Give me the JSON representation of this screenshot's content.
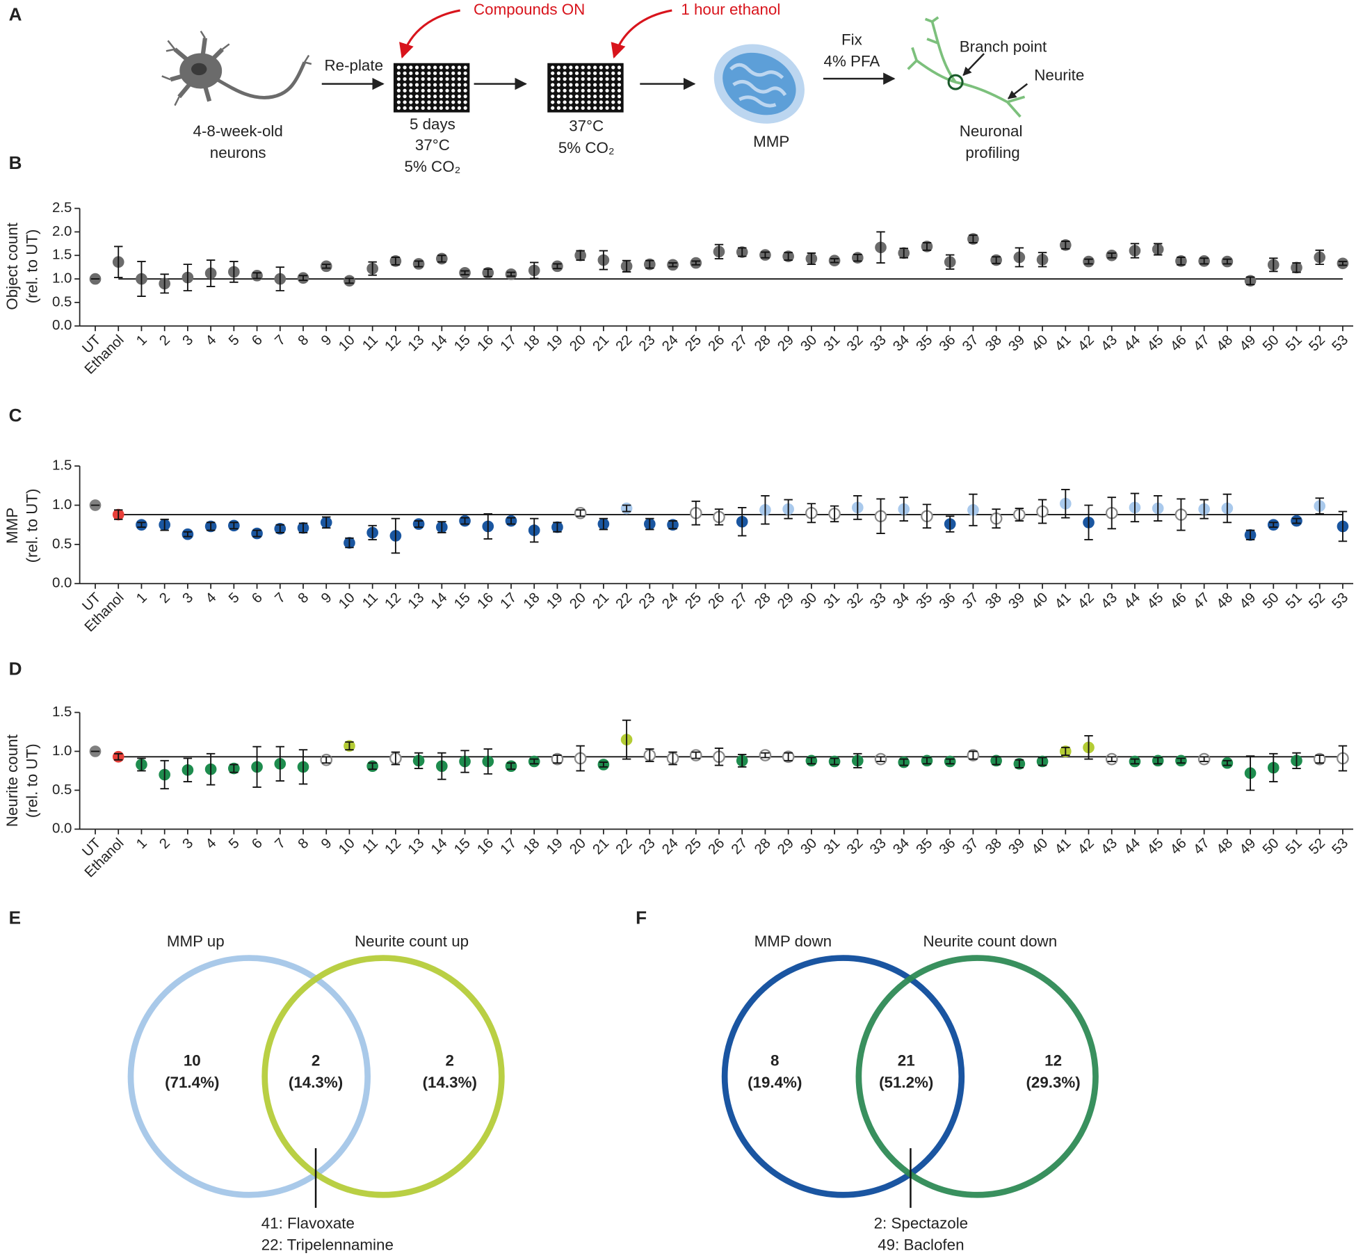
{
  "diagram": {
    "panel": "A",
    "neurons": [
      "4-8-week-old",
      "neurons"
    ],
    "replate": "Re-plate",
    "compounds": "Compounds ON",
    "ethanol": "1 hour ethanol",
    "plate1": [
      "5 days",
      "37°C",
      "5% CO₂"
    ],
    "plate2": [
      "37°C",
      "5% CO₂"
    ],
    "mmp": "MMP",
    "fix": [
      "Fix",
      "4% PFA"
    ],
    "branch": "Branch point",
    "neurite": "Neurite",
    "profiling": [
      "Neuronal",
      "profiling"
    ]
  },
  "chart_data": [
    {
      "type": "errorbar",
      "panel": "B",
      "ylabel": [
        "Object count",
        "(rel. to UT)"
      ],
      "categories": [
        "UT",
        "Ethanol",
        "1",
        "2",
        "3",
        "4",
        "5",
        "6",
        "7",
        "8",
        "9",
        "10",
        "11",
        "12",
        "13",
        "14",
        "15",
        "16",
        "17",
        "18",
        "19",
        "20",
        "21",
        "22",
        "23",
        "24",
        "25",
        "26",
        "27",
        "28",
        "29",
        "30",
        "31",
        "32",
        "33",
        "34",
        "35",
        "36",
        "37",
        "38",
        "39",
        "40",
        "41",
        "42",
        "43",
        "44",
        "45",
        "46",
        "47",
        "48",
        "49",
        "50",
        "51",
        "52",
        "53"
      ],
      "values": [
        1.0,
        1.36,
        1.0,
        0.9,
        1.03,
        1.12,
        1.15,
        1.07,
        1.0,
        1.02,
        1.27,
        0.96,
        1.22,
        1.38,
        1.32,
        1.43,
        1.13,
        1.13,
        1.1,
        1.18,
        1.27,
        1.5,
        1.4,
        1.27,
        1.31,
        1.3,
        1.34,
        1.58,
        1.57,
        1.51,
        1.48,
        1.43,
        1.39,
        1.45,
        1.67,
        1.55,
        1.69,
        1.36,
        1.85,
        1.4,
        1.46,
        1.41,
        1.72,
        1.37,
        1.5,
        1.6,
        1.63,
        1.38,
        1.38,
        1.37,
        0.96,
        1.3,
        1.24,
        1.46,
        1.33
      ],
      "errors": [
        0,
        0.33,
        0.37,
        0.2,
        0.28,
        0.28,
        0.22,
        0.06,
        0.25,
        0.05,
        0.04,
        0.05,
        0.14,
        0.08,
        0.06,
        0.07,
        0.04,
        0.08,
        0.04,
        0.17,
        0.05,
        0.1,
        0.2,
        0.12,
        0.08,
        0.04,
        0.04,
        0.15,
        0.09,
        0.06,
        0.08,
        0.12,
        0.04,
        0.07,
        0.33,
        0.1,
        0.08,
        0.15,
        0.08,
        0.07,
        0.2,
        0.15,
        0.08,
        0.05,
        0.05,
        0.15,
        0.12,
        0.08,
        0.06,
        0.05,
        0.08,
        0.14,
        0.1,
        0.15,
        0.04
      ],
      "color": "#6b6b6b",
      "reference_line": 1.0,
      "ylim": [
        0,
        2.5
      ],
      "yticks": [
        {
          "value": 0,
          "label": "0.0"
        },
        0.5,
        {
          "value": 1,
          "label": "1.0"
        },
        1.5,
        {
          "value": 2,
          "label": "2.0"
        },
        2.5
      ]
    },
    {
      "type": "errorbar",
      "panel": "C",
      "ylabel": [
        "MMP",
        "(rel. to UT)"
      ],
      "categories": [
        "UT",
        "Ethanol",
        "1",
        "2",
        "3",
        "4",
        "5",
        "6",
        "7",
        "8",
        "9",
        "10",
        "11",
        "12",
        "13",
        "14",
        "15",
        "16",
        "17",
        "18",
        "19",
        "20",
        "21",
        "22",
        "23",
        "24",
        "25",
        "26",
        "27",
        "28",
        "29",
        "30",
        "31",
        "32",
        "33",
        "34",
        "35",
        "36",
        "37",
        "38",
        "39",
        "40",
        "41",
        "42",
        "43",
        "44",
        "45",
        "46",
        "47",
        "48",
        "49",
        "50",
        "51",
        "52",
        "53"
      ],
      "values": [
        1.0,
        0.88,
        0.75,
        0.75,
        0.63,
        0.73,
        0.74,
        0.64,
        0.7,
        0.71,
        0.78,
        0.52,
        0.65,
        0.61,
        0.76,
        0.72,
        0.8,
        0.73,
        0.8,
        0.68,
        0.72,
        0.9,
        0.76,
        0.96,
        0.76,
        0.75,
        0.9,
        0.85,
        0.79,
        0.94,
        0.95,
        0.9,
        0.89,
        0.97,
        0.86,
        0.95,
        0.86,
        0.76,
        0.94,
        0.83,
        0.88,
        0.92,
        1.02,
        0.78,
        0.9,
        0.97,
        0.96,
        0.88,
        0.95,
        0.96,
        0.62,
        0.75,
        0.8,
        0.99,
        0.73
      ],
      "errors": [
        0,
        0.06,
        0.03,
        0.07,
        0.03,
        0.05,
        0.04,
        0.04,
        0.05,
        0.06,
        0.07,
        0.06,
        0.09,
        0.22,
        0.04,
        0.07,
        0.04,
        0.16,
        0.04,
        0.15,
        0.06,
        0.04,
        0.07,
        0.04,
        0.07,
        0.05,
        0.15,
        0.1,
        0.18,
        0.18,
        0.12,
        0.12,
        0.1,
        0.15,
        0.22,
        0.15,
        0.15,
        0.1,
        0.2,
        0.12,
        0.08,
        0.15,
        0.18,
        0.22,
        0.2,
        0.18,
        0.16,
        0.2,
        0.12,
        0.18,
        0.06,
        0.03,
        0.03,
        0.1,
        0.19
      ],
      "colors": [
        "#808080",
        "#e8403a",
        "#1a56a0",
        "#1a56a0",
        "#1a56a0",
        "#1a56a0",
        "#1a56a0",
        "#1a56a0",
        "#1a56a0",
        "#1a56a0",
        "#1a56a0",
        "#1a56a0",
        "#1a56a0",
        "#1a56a0",
        "#1a56a0",
        "#1a56a0",
        "#1a56a0",
        "#1a56a0",
        "#1a56a0",
        "#1a56a0",
        "#1a56a0",
        "none",
        "#1a56a0",
        "#a9c9ec",
        "#1a56a0",
        "#1a56a0",
        "none",
        "none",
        "#1a56a0",
        "#a9c9ec",
        "#a9c9ec",
        "none",
        "none",
        "#a9c9ec",
        "none",
        "#a9c9ec",
        "none",
        "#1a56a0",
        "#a9c9ec",
        "none",
        "none",
        "none",
        "#a9c9ec",
        "#1a56a0",
        "none",
        "#a9c9ec",
        "#a9c9ec",
        "none",
        "#a9c9ec",
        "#a9c9ec",
        "#1a56a0",
        "#1a56a0",
        "#1a56a0",
        "#a9c9ec",
        "#1a56a0"
      ],
      "reference_line": 0.88,
      "ylim": [
        0,
        1.5
      ],
      "yticks": [
        {
          "value": 0,
          "label": "0.0"
        },
        0.5,
        {
          "value": 1,
          "label": "1.0"
        },
        1.5
      ]
    },
    {
      "type": "errorbar",
      "panel": "D",
      "ylabel": [
        "Neurite count",
        "(rel. to UT)"
      ],
      "categories": [
        "UT",
        "Ethanol",
        "1",
        "2",
        "3",
        "4",
        "5",
        "6",
        "7",
        "8",
        "9",
        "10",
        "11",
        "12",
        "13",
        "14",
        "15",
        "16",
        "17",
        "18",
        "19",
        "20",
        "21",
        "22",
        "23",
        "24",
        "25",
        "26",
        "27",
        "28",
        "29",
        "30",
        "31",
        "32",
        "33",
        "34",
        "35",
        "36",
        "37",
        "38",
        "39",
        "40",
        "41",
        "42",
        "43",
        "44",
        "45",
        "46",
        "47",
        "48",
        "49",
        "50",
        "51",
        "52",
        "53"
      ],
      "values": [
        1.0,
        0.93,
        0.83,
        0.7,
        0.76,
        0.77,
        0.78,
        0.8,
        0.84,
        0.8,
        0.89,
        1.07,
        0.81,
        0.91,
        0.88,
        0.81,
        0.87,
        0.87,
        0.81,
        0.87,
        0.9,
        0.91,
        0.83,
        1.15,
        0.95,
        0.91,
        0.95,
        0.93,
        0.88,
        0.95,
        0.93,
        0.88,
        0.87,
        0.88,
        0.9,
        0.86,
        0.88,
        0.87,
        0.95,
        0.88,
        0.84,
        0.87,
        1.0,
        1.05,
        0.9,
        0.87,
        0.88,
        0.88,
        0.9,
        0.85,
        0.72,
        0.79,
        0.88,
        0.9,
        0.91
      ],
      "errors": [
        0,
        0.04,
        0.08,
        0.18,
        0.15,
        0.2,
        0.05,
        0.26,
        0.22,
        0.22,
        0.04,
        0.05,
        0.04,
        0.08,
        0.1,
        0.17,
        0.14,
        0.16,
        0.04,
        0.03,
        0.05,
        0.16,
        0.03,
        0.25,
        0.08,
        0.08,
        0.04,
        0.11,
        0.08,
        0.03,
        0.05,
        0.04,
        0.04,
        0.09,
        0.03,
        0.04,
        0.04,
        0.03,
        0.05,
        0.05,
        0.05,
        0.05,
        0.05,
        0.15,
        0.03,
        0.03,
        0.04,
        0.03,
        0.03,
        0.03,
        0.22,
        0.18,
        0.1,
        0.05,
        0.16
      ],
      "colors": [
        "#808080",
        "#e8403a",
        "#1e8c4e",
        "#1e8c4e",
        "#1e8c4e",
        "#1e8c4e",
        "#1e8c4e",
        "#1e8c4e",
        "#1e8c4e",
        "#1e8c4e",
        "none",
        "#b4cc34",
        "#1e8c4e",
        "none",
        "#1e8c4e",
        "#1e8c4e",
        "#1e8c4e",
        "#1e8c4e",
        "#1e8c4e",
        "#1e8c4e",
        "none",
        "none",
        "#1e8c4e",
        "#b4cc34",
        "none",
        "none",
        "none",
        "none",
        "#1e8c4e",
        "none",
        "none",
        "#1e8c4e",
        "#1e8c4e",
        "#1e8c4e",
        "none",
        "#1e8c4e",
        "#1e8c4e",
        "#1e8c4e",
        "none",
        "#1e8c4e",
        "#1e8c4e",
        "#1e8c4e",
        "#b4cc34",
        "#b4cc34",
        "none",
        "#1e8c4e",
        "#1e8c4e",
        "#1e8c4e",
        "none",
        "#1e8c4e",
        "#1e8c4e",
        "#1e8c4e",
        "#1e8c4e",
        "none",
        "none"
      ],
      "reference_line": 0.93,
      "ylim": [
        0,
        1.5
      ],
      "yticks": [
        {
          "value": 0,
          "label": "0.0"
        },
        0.5,
        {
          "value": 1,
          "label": "1.0"
        },
        1.5
      ]
    }
  ],
  "venns": [
    {
      "panel": "E",
      "sets": [
        {
          "name": "MMP up",
          "color": "#a4c6e8"
        },
        {
          "name": "Neurite count up",
          "color": "#b5cc3a"
        }
      ],
      "counts": [
        10,
        2,
        2
      ],
      "percents": [
        71.4,
        14.3,
        14.3
      ],
      "percent_labels": [
        "(71.4%)",
        "(14.3%)",
        "(14.3%)"
      ],
      "note": [
        "41: Flavoxate",
        "22: Tripelennamine"
      ]
    },
    {
      "panel": "F",
      "sets": [
        {
          "name": "MMP down",
          "color": "#0e4c9c"
        },
        {
          "name": "Neurite count down",
          "color": "#2e8a55"
        }
      ],
      "counts": [
        8,
        21,
        12
      ],
      "percents": [
        19.4,
        51.2,
        29.3
      ],
      "percent_labels": [
        "(19.4%)",
        "(51.2%)",
        "(29.3%)"
      ],
      "note": [
        "2: Spectazole",
        "49: Baclofen"
      ]
    }
  ]
}
